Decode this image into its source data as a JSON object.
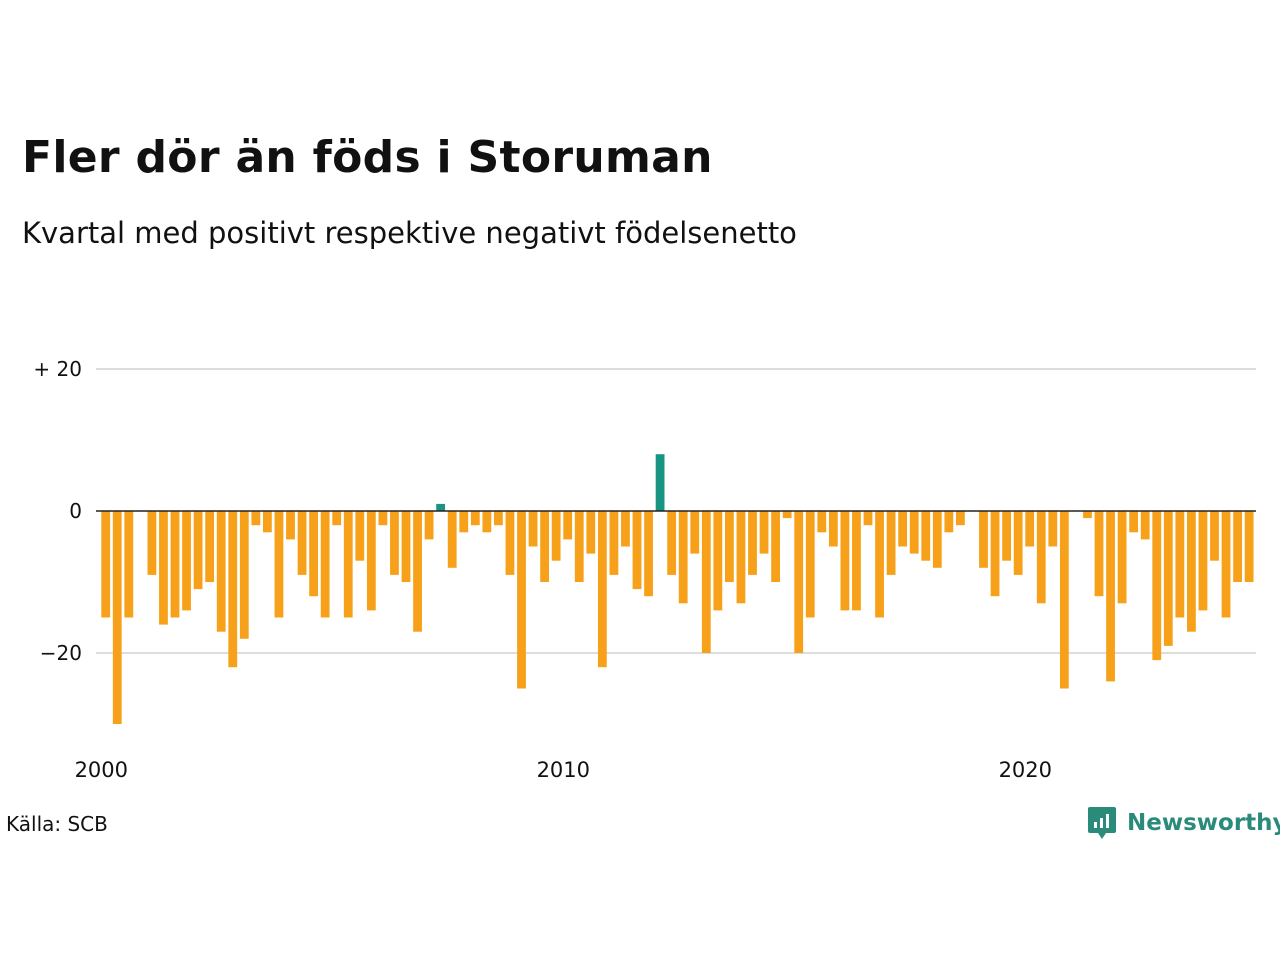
{
  "title": "Fler dör än föds i Storuman",
  "subtitle": "Kvartal med positivt respektive negativt födelsenetto",
  "source": "Källa: SCB",
  "brand": {
    "name": "Newsworthy",
    "icon": "newsworthy-logo-icon"
  },
  "colors": {
    "negative": "#f7a11a",
    "positive": "#189483",
    "zero_line": "#222222",
    "grid": "#dddddd",
    "brand": "#2b8b7b"
  },
  "chart_data": {
    "type": "bar",
    "title": "Fler dör än föds i Storuman",
    "subtitle": "Kvartal med positivt respektive negativt födelsenetto",
    "xlabel": "",
    "ylabel": "",
    "ylim": [
      -30,
      20
    ],
    "grid": true,
    "y_ticks": [
      {
        "value": 20,
        "label": "+ 20"
      },
      {
        "value": 0,
        "label": "0"
      },
      {
        "value": -20,
        "label": "−20"
      }
    ],
    "x_ticks": [
      {
        "value": 2000,
        "label": "2000"
      },
      {
        "value": 2010,
        "label": "2010"
      },
      {
        "value": 2020,
        "label": "2020"
      }
    ],
    "x_start": 2000,
    "periods_per_year": 4,
    "values": [
      -15,
      -30,
      -15,
      0,
      -9,
      -16,
      -15,
      -14,
      -11,
      -10,
      -17,
      -22,
      -18,
      -2,
      -3,
      -15,
      -4,
      -9,
      -12,
      -15,
      -2,
      -15,
      -7,
      -14,
      -2,
      -9,
      -10,
      -17,
      -4,
      1,
      -8,
      -3,
      -2,
      -3,
      -2,
      -9,
      -25,
      -5,
      -10,
      -7,
      -4,
      -10,
      -6,
      -22,
      -9,
      -5,
      -11,
      -12,
      8,
      -9,
      -13,
      -6,
      -20,
      -14,
      -10,
      -13,
      -9,
      -6,
      -10,
      -1,
      -20,
      -15,
      -3,
      -5,
      -14,
      -14,
      -2,
      -15,
      -9,
      -5,
      -6,
      -7,
      -8,
      -3,
      -2,
      0,
      -8,
      -12,
      -7,
      -9,
      -5,
      -13,
      -5,
      -25,
      0,
      -1,
      -12,
      -24,
      -13,
      -3,
      -4,
      -21,
      -19,
      -15,
      -17,
      -14,
      -7,
      -15,
      -10,
      -10
    ]
  }
}
